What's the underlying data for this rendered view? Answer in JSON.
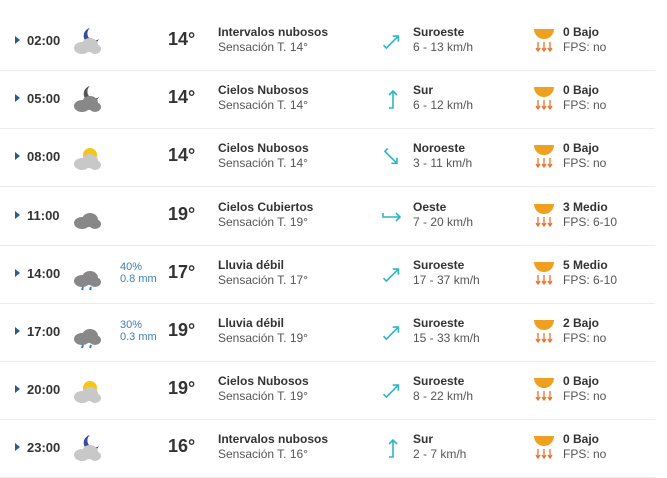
{
  "colors": {
    "wind": "#2ab7c4",
    "uv": "#f0a020",
    "precip": "#3d7fb5"
  },
  "rows": [
    {
      "time": "02:00",
      "icon": "moon-cloud-icon",
      "precip_prob": "",
      "precip_mm": "",
      "temp": "14°",
      "desc": "Intervalos nubosos",
      "feels": "Sensación T. 14°",
      "wind_dir": "Suroeste",
      "wind_speed": "6 - 13 km/h",
      "uv": "0 Bajo",
      "fps": "FPS: no"
    },
    {
      "time": "05:00",
      "icon": "moon-dark-cloud-icon",
      "precip_prob": "",
      "precip_mm": "",
      "temp": "14°",
      "desc": "Cielos Nubosos",
      "feels": "Sensación T. 14°",
      "wind_dir": "Sur",
      "wind_speed": "6 - 12 km/h",
      "uv": "0 Bajo",
      "fps": "FPS: no"
    },
    {
      "time": "08:00",
      "icon": "sun-cloud-icon",
      "precip_prob": "",
      "precip_mm": "",
      "temp": "14°",
      "desc": "Cielos Nubosos",
      "feels": "Sensación T. 14°",
      "wind_dir": "Noroeste",
      "wind_speed": "3 - 11 km/h",
      "uv": "0 Bajo",
      "fps": "FPS: no"
    },
    {
      "time": "11:00",
      "icon": "overcast-cloud-icon",
      "precip_prob": "",
      "precip_mm": "",
      "temp": "19°",
      "desc": "Cielos Cubiertos",
      "feels": "Sensación T. 19°",
      "wind_dir": "Oeste",
      "wind_speed": "7 - 20 km/h",
      "uv": "3 Medio",
      "fps": "FPS: 6-10"
    },
    {
      "time": "14:00",
      "icon": "rain-cloud-icon",
      "precip_prob": "40%",
      "precip_mm": "0.8 mm",
      "temp": "17°",
      "desc": "Lluvia débil",
      "feels": "Sensación T. 17°",
      "wind_dir": "Suroeste",
      "wind_speed": "17 - 37 km/h",
      "uv": "5 Medio",
      "fps": "FPS: 6-10"
    },
    {
      "time": "17:00",
      "icon": "rain-cloud-icon",
      "precip_prob": "30%",
      "precip_mm": "0.3 mm",
      "temp": "19°",
      "desc": "Lluvia débil",
      "feels": "Sensación T. 19°",
      "wind_dir": "Suroeste",
      "wind_speed": "15 - 33 km/h",
      "uv": "2 Bajo",
      "fps": "FPS: no"
    },
    {
      "time": "20:00",
      "icon": "sun-cloud-icon",
      "precip_prob": "",
      "precip_mm": "",
      "temp": "19°",
      "desc": "Cielos Nubosos",
      "feels": "Sensación T. 19°",
      "wind_dir": "Suroeste",
      "wind_speed": "8 - 22 km/h",
      "uv": "0 Bajo",
      "fps": "FPS: no"
    },
    {
      "time": "23:00",
      "icon": "moon-cloud-icon",
      "precip_prob": "",
      "precip_mm": "",
      "temp": "16°",
      "desc": "Intervalos nubosos",
      "feels": "Sensación T. 16°",
      "wind_dir": "Sur",
      "wind_speed": "2 - 7 km/h",
      "uv": "0 Bajo",
      "fps": "FPS: no"
    }
  ]
}
